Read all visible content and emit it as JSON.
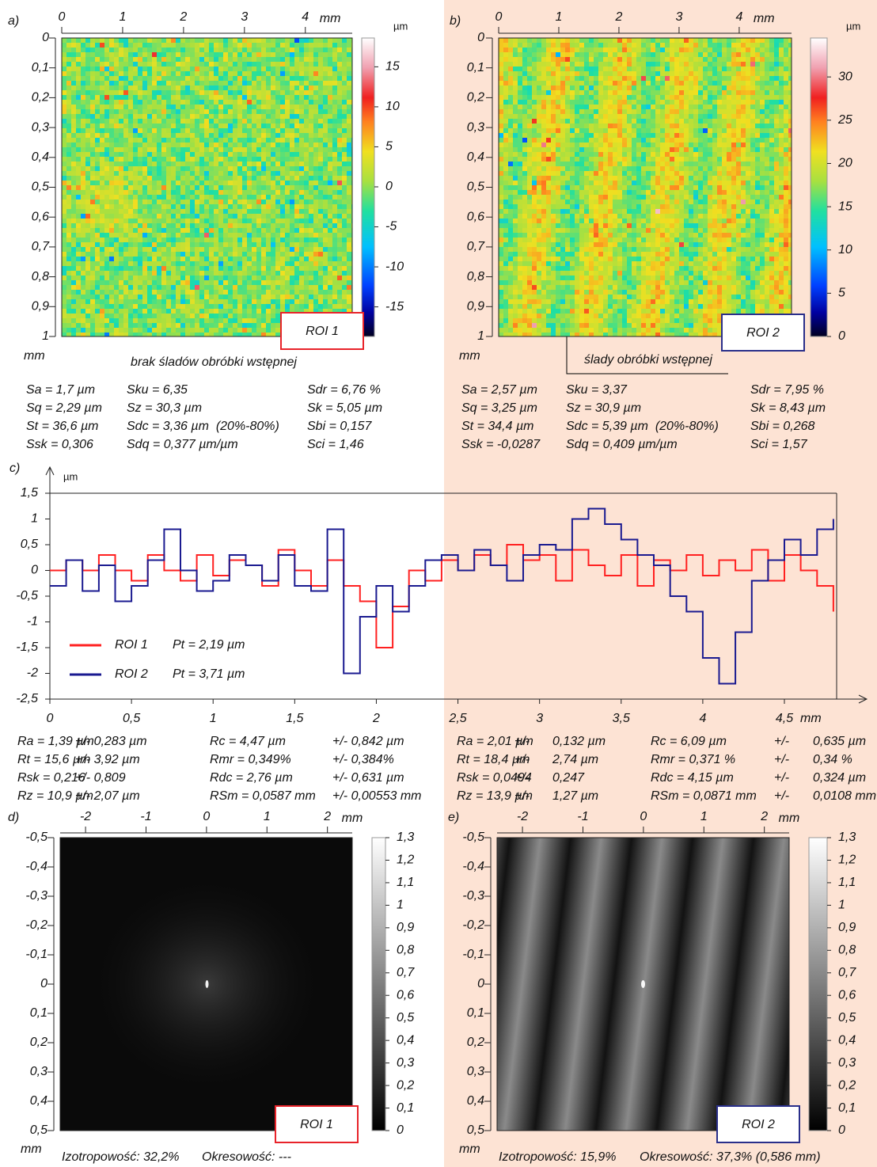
{
  "chart_data": [
    {
      "type": "heatmap",
      "label": "a)",
      "xlim": [
        0,
        4.77
      ],
      "xticks": [
        0,
        1,
        2,
        3,
        4
      ],
      "x_unit": "mm",
      "ylim": [
        0,
        1
      ],
      "yticks": [
        0,
        {
          "value": 0.1,
          "label": "0,1"
        },
        {
          "value": 0.2,
          "label": "0,2"
        },
        {
          "value": 0.3,
          "label": "0,3"
        },
        {
          "value": 0.4,
          "label": "0,4"
        },
        {
          "value": 0.5,
          "label": "0,5"
        },
        {
          "value": 0.6,
          "label": "0,6"
        },
        {
          "value": 0.7,
          "label": "0,7"
        },
        {
          "value": 0.8,
          "label": "0,8"
        },
        {
          "value": 0.9,
          "label": "0,9"
        },
        1
      ],
      "y_unit": "mm",
      "colorbar": {
        "unit": "µm",
        "colormap": "jet",
        "lim": [
          -18.7,
          18.6
        ],
        "ticks": [
          15,
          10,
          5,
          0,
          -5,
          -10,
          -15
        ]
      },
      "roi_label": "ROI 1",
      "roi_color": "#e8232a",
      "captions": [
        "brak śladów obróbki wstępnej"
      ]
    },
    {
      "type": "heatmap",
      "label": "b)",
      "xlim": [
        0,
        4.87
      ],
      "xticks": [
        0,
        1,
        2,
        3,
        4
      ],
      "x_unit": "mm",
      "ylim": [
        0,
        1
      ],
      "yticks": [
        0,
        {
          "value": 0.1,
          "label": "0,1"
        },
        {
          "value": 0.2,
          "label": "0,2"
        },
        {
          "value": 0.3,
          "label": "0,3"
        },
        {
          "value": 0.4,
          "label": "0,4"
        },
        {
          "value": 0.5,
          "label": "0,5"
        },
        {
          "value": 0.6,
          "label": "0,6"
        },
        {
          "value": 0.7,
          "label": "0,7"
        },
        {
          "value": 0.8,
          "label": "0,8"
        },
        {
          "value": 0.9,
          "label": "0,9"
        },
        1
      ],
      "y_unit": "mm",
      "colorbar": {
        "unit": "µm",
        "colormap": "jet",
        "lim": [
          0,
          34.5
        ],
        "ticks": [
          30,
          25,
          20,
          15,
          10,
          5,
          0
        ]
      },
      "roi_label": "ROI 2",
      "roi_color": "#2a2f8a",
      "captions": [
        "ślady obróbki wstępnej"
      ]
    },
    {
      "type": "line",
      "label": "c)",
      "x_unit": "mm",
      "y_unit": "µm",
      "xlim": [
        0,
        4.82
      ],
      "xticks": [
        0,
        {
          "value": 0.5,
          "label": "0,5"
        },
        1,
        {
          "value": 1.5,
          "label": "1,5"
        },
        2,
        {
          "value": 2.5,
          "label": "2,5"
        },
        3,
        {
          "value": 3.5,
          "label": "3,5"
        },
        4,
        {
          "value": 4.5,
          "label": "4,5"
        }
      ],
      "ylim": [
        -2.5,
        1.5
      ],
      "yticks": [
        {
          "value": 1.5,
          "label": "1,5"
        },
        1,
        {
          "value": 0.5,
          "label": "0,5"
        },
        0,
        {
          "value": -0.5,
          "label": "-0,5"
        },
        -1,
        {
          "value": -1.5,
          "label": "-1,5"
        },
        -2,
        {
          "value": -2.5,
          "label": "-2,5"
        }
      ],
      "x": [
        0,
        0.1,
        0.2,
        0.3,
        0.4,
        0.5,
        0.6,
        0.7,
        0.8,
        0.9,
        1.0,
        1.1,
        1.2,
        1.3,
        1.4,
        1.5,
        1.6,
        1.7,
        1.8,
        1.9,
        2.0,
        2.1,
        2.2,
        2.3,
        2.4,
        2.5,
        2.6,
        2.7,
        2.8,
        2.9,
        3.0,
        3.1,
        3.2,
        3.3,
        3.4,
        3.5,
        3.6,
        3.7,
        3.8,
        3.9,
        4.0,
        4.1,
        4.2,
        4.3,
        4.4,
        4.5,
        4.6,
        4.7,
        4.8
      ],
      "series": [
        {
          "name": "ROI 1",
          "pt_label": "Pt = 2,19 µm",
          "color": "#ff2020",
          "values": [
            0,
            0.2,
            0,
            0.3,
            0,
            -0.2,
            0.3,
            0,
            -0.2,
            0.3,
            -0.1,
            0.2,
            0.1,
            -0.3,
            0.4,
            0,
            -0.3,
            0.2,
            -0.3,
            -0.6,
            -1.5,
            -0.7,
            0,
            -0.2,
            0.2,
            0,
            0.3,
            0.1,
            0.5,
            0.2,
            0.3,
            -0.2,
            0.4,
            0.1,
            -0.1,
            0.3,
            -0.3,
            0.2,
            0,
            0.3,
            -0.1,
            0.2,
            0,
            0.4,
            -0.2,
            0.3,
            0,
            -0.3,
            -0.8
          ]
        },
        {
          "name": "ROI 2",
          "pt_label": "Pt = 3,71 µm",
          "color": "#1a1a90",
          "values": [
            -0.3,
            0.2,
            -0.4,
            0.1,
            -0.6,
            -0.3,
            0.2,
            0.8,
            0,
            -0.4,
            -0.2,
            0.3,
            0.1,
            -0.2,
            0.3,
            -0.3,
            -0.4,
            0.8,
            -2.0,
            -0.9,
            -0.3,
            -0.8,
            -0.3,
            0.2,
            0.3,
            0,
            0.4,
            0.1,
            -0.2,
            0.3,
            0.5,
            0.4,
            1.0,
            1.2,
            0.9,
            0.6,
            0.3,
            0.1,
            -0.5,
            -0.8,
            -1.7,
            -2.2,
            -1.2,
            -0.2,
            0.2,
            0.6,
            0.3,
            0.8,
            1.0
          ]
        }
      ]
    },
    {
      "type": "spectrum",
      "label": "d)",
      "xlim": [
        -2.42,
        2.41
      ],
      "xticks": [
        -2,
        -1,
        0,
        1,
        2
      ],
      "x_unit": "mm",
      "ylim": [
        -0.5,
        0.5
      ],
      "yticks": [
        {
          "value": -0.5,
          "label": "-0,5"
        },
        {
          "value": -0.4,
          "label": "-0,4"
        },
        {
          "value": -0.3,
          "label": "-0,3"
        },
        {
          "value": -0.2,
          "label": "-0,2"
        },
        {
          "value": -0.1,
          "label": "-0,1"
        },
        0,
        {
          "value": 0.1,
          "label": "0,1"
        },
        {
          "value": 0.2,
          "label": "0,2"
        },
        {
          "value": 0.3,
          "label": "0,3"
        },
        {
          "value": 0.4,
          "label": "0,4"
        },
        {
          "value": 0.5,
          "label": "0,5"
        }
      ],
      "y_unit": "mm",
      "colorbar": {
        "colormap": "gray",
        "lim": [
          0,
          1.3
        ],
        "ticks": [
          {
            "value": 1.3,
            "label": "1,3"
          },
          {
            "value": 1.2,
            "label": "1,2"
          },
          {
            "value": 1.1,
            "label": "1,1"
          },
          1,
          {
            "value": 0.9,
            "label": "0,9"
          },
          {
            "value": 0.8,
            "label": "0,8"
          },
          {
            "value": 0.7,
            "label": "0,7"
          },
          {
            "value": 0.6,
            "label": "0,6"
          },
          {
            "value": 0.5,
            "label": "0,5"
          },
          {
            "value": 0.4,
            "label": "0,4"
          },
          {
            "value": 0.3,
            "label": "0,3"
          },
          {
            "value": 0.2,
            "label": "0,2"
          },
          {
            "value": 0.1,
            "label": "0,1"
          },
          0
        ]
      },
      "roi_label": "ROI 1",
      "roi_color": "#e8232a",
      "captions": [
        "Izotropowość: 32,2%",
        "Okresowość: ---"
      ]
    },
    {
      "type": "spectrum",
      "label": "e)",
      "xlim": [
        -2.42,
        2.41
      ],
      "xticks": [
        -2,
        -1,
        0,
        1,
        2
      ],
      "x_unit": "mm",
      "ylim": [
        -0.5,
        0.5
      ],
      "yticks": [
        {
          "value": -0.5,
          "label": "-0,5"
        },
        {
          "value": -0.4,
          "label": "-0,4"
        },
        {
          "value": -0.3,
          "label": "-0,3"
        },
        {
          "value": -0.2,
          "label": "-0,2"
        },
        {
          "value": -0.1,
          "label": "-0,1"
        },
        0,
        {
          "value": 0.1,
          "label": "0,1"
        },
        {
          "value": 0.2,
          "label": "0,2"
        },
        {
          "value": 0.3,
          "label": "0,3"
        },
        {
          "value": 0.4,
          "label": "0,4"
        },
        {
          "value": 0.5,
          "label": "0,5"
        }
      ],
      "y_unit": "mm",
      "colorbar": {
        "colormap": "gray",
        "lim": [
          0,
          1.3
        ],
        "ticks": [
          {
            "value": 1.3,
            "label": "1,3"
          },
          {
            "value": 1.2,
            "label": "1,2"
          },
          {
            "value": 1.1,
            "label": "1,1"
          },
          1,
          {
            "value": 0.9,
            "label": "0,9"
          },
          {
            "value": 0.8,
            "label": "0,8"
          },
          {
            "value": 0.7,
            "label": "0,7"
          },
          {
            "value": 0.6,
            "label": "0,6"
          },
          {
            "value": 0.5,
            "label": "0,5"
          },
          {
            "value": 0.4,
            "label": "0,4"
          },
          {
            "value": 0.3,
            "label": "0,3"
          },
          {
            "value": 0.2,
            "label": "0,2"
          },
          {
            "value": 0.1,
            "label": "0,1"
          },
          0
        ]
      },
      "roi_label": "ROI 2",
      "roi_color": "#2a2f8a",
      "captions": [
        "Izotropowość: 15,9%",
        "Okresowość: 37,3% (0,586 mm)"
      ]
    }
  ],
  "parameters": {
    "roi1_areal": [
      [
        "Sa = 1,7 µm",
        "Sq = 2,29 µm",
        "St = 36,6 µm",
        "Ssk = 0,306"
      ],
      [
        "Sku = 6,35",
        "Sz = 30,3 µm",
        "Sdc = 3,36 µm  (20%-80%)",
        "Sdq = 0,377 µm/µm"
      ],
      [
        "Sdr = 6,76 %",
        "Sk = 5,05 µm",
        "Sbi = 0,157",
        "Sci = 1,46"
      ]
    ],
    "roi2_areal": [
      [
        "Sa = 2,57 µm",
        "Sq = 3,25 µm",
        "St = 34,4 µm",
        "Ssk = -0,0287"
      ],
      [
        "Sku = 3,37",
        "Sz = 30,9 µm",
        "Sdc = 5,39 µm  (20%-80%)",
        "Sdq = 0,409 µm/µm"
      ],
      [
        "Sdr = 7,95 %",
        "Sk = 8,43 µm",
        "Sbi = 0,268",
        "Sci = 1,57"
      ]
    ],
    "roi1_profile": [
      [
        "Ra = 1,39 µm",
        "Rt = 15,6 µm",
        "Rsk = 0,216",
        "Rz = 10,9 µm"
      ],
      [
        "+/- 0,283 µm",
        "+/- 3,92 µm",
        "+/- 0,809",
        "+/- 2,07 µm"
      ],
      [
        "Rc = 4,47 µm",
        "Rmr = 0,349%",
        "Rdc = 2,76 µm",
        "RSm = 0,0587 mm"
      ],
      [
        "+/- 0,842 µm",
        "+/- 0,384%",
        "+/- 0,631 µm",
        "+/- 0,00553 mm"
      ]
    ],
    "roi2_profile": [
      [
        "Ra = 2,01 µm",
        "Rt = 18,4 µm",
        "Rsk = 0,0494",
        "Rz = 13,9 µm"
      ],
      [
        "+/-",
        "+/-",
        "+/-",
        "+/-"
      ],
      [
        "0,132 µm",
        "2,74 µm",
        "0,247",
        "1,27 µm"
      ],
      [
        "Rc = 6,09 µm",
        "Rmr = 0,371 %",
        "Rdc = 4,15 µm",
        "RSm = 0,0871 mm"
      ],
      [
        "+/-",
        "+/-",
        "+/-",
        "+/-"
      ],
      [
        "0,635 µm",
        "0,34 %",
        "0,324 µm",
        "0,0108 mm"
      ]
    ]
  }
}
